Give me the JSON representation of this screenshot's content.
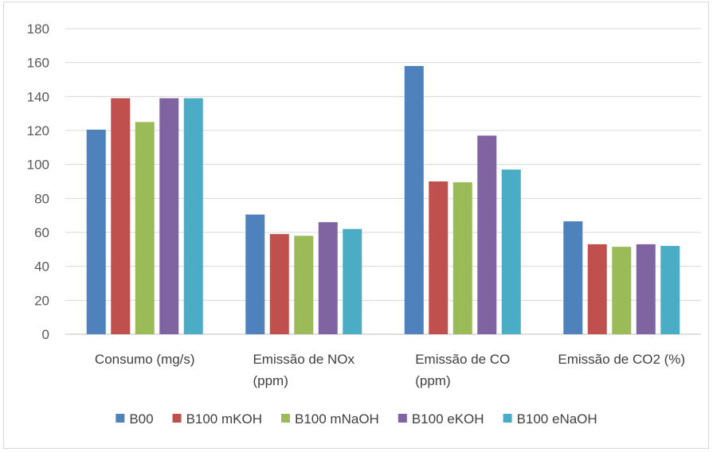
{
  "chart_data": {
    "type": "bar",
    "title": "",
    "xlabel": "",
    "ylabel": "",
    "ylim": [
      0,
      180
    ],
    "yticks": [
      0,
      20,
      40,
      60,
      80,
      100,
      120,
      140,
      160,
      180
    ],
    "grid": true,
    "legend_position": "bottom",
    "categories": [
      [
        "Consumo (mg/s)"
      ],
      [
        "Emissão de NOx",
        "(ppm)"
      ],
      [
        "Emissão de CO",
        "(ppm)"
      ],
      [
        "Emissão de CO2 (%)"
      ]
    ],
    "series": [
      {
        "name": "B00",
        "color": "#4f81bd",
        "values": [
          120.5,
          70.5,
          158,
          66.5
        ]
      },
      {
        "name": "B100 mKOH",
        "color": "#c0504d",
        "values": [
          139,
          59,
          90,
          53
        ]
      },
      {
        "name": "B100 mNaOH",
        "color": "#9bbb59",
        "values": [
          125,
          58,
          89.5,
          51.5
        ]
      },
      {
        "name": "B100 eKOH",
        "color": "#8064a2",
        "values": [
          139,
          66,
          117,
          53
        ]
      },
      {
        "name": "B100 eNaOH",
        "color": "#4bacc6",
        "values": [
          139,
          62,
          97,
          52
        ]
      }
    ]
  }
}
